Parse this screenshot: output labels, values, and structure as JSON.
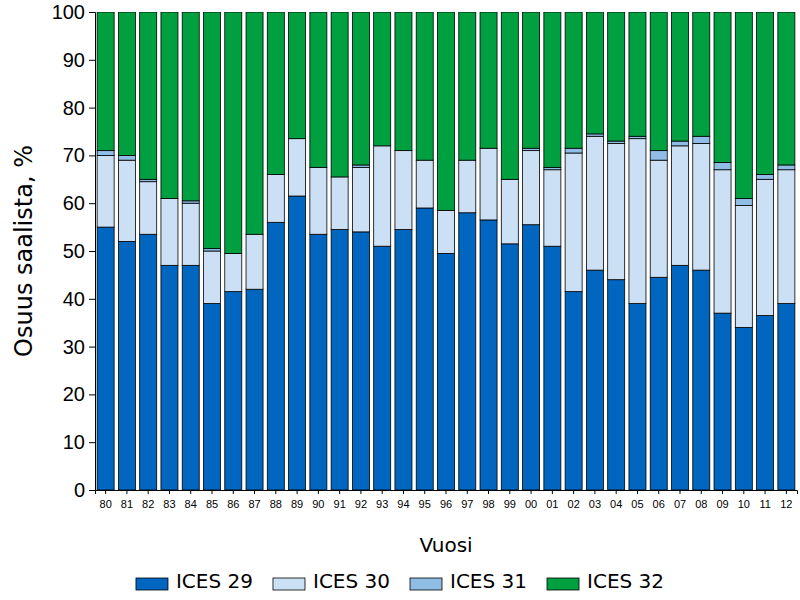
{
  "chart_data": {
    "type": "bar",
    "stacked": true,
    "x_label": "Vuosi",
    "y_label": "Osuus saalista, %",
    "categories": [
      "80",
      "81",
      "82",
      "83",
      "84",
      "85",
      "86",
      "87",
      "88",
      "89",
      "90",
      "91",
      "92",
      "93",
      "94",
      "95",
      "96",
      "97",
      "98",
      "99",
      "00",
      "01",
      "02",
      "03",
      "04",
      "05",
      "06",
      "07",
      "08",
      "09",
      "10",
      "11",
      "12"
    ],
    "ylim": [
      0,
      100
    ],
    "yticks": [
      0,
      10,
      20,
      30,
      40,
      50,
      60,
      70,
      80,
      90,
      100
    ],
    "legend": "bottom",
    "series": [
      {
        "name": "ICES 29",
        "color": "#0066c0",
        "values": [
          55,
          52,
          53.5,
          47,
          47,
          39,
          41.5,
          42,
          56,
          61.5,
          53.5,
          54.5,
          54,
          51,
          54.5,
          59,
          49.5,
          58,
          56.5,
          51.5,
          55.5,
          51,
          41.5,
          46,
          44,
          39,
          44.5,
          47,
          46,
          37,
          34,
          36.5,
          39
        ]
      },
      {
        "name": "ICES 30",
        "color": "#cce0f5",
        "values": [
          15,
          17,
          11,
          14,
          13,
          11,
          8,
          11.5,
          10,
          12,
          14,
          11,
          13.5,
          21,
          16.5,
          10,
          9,
          11,
          15,
          13.5,
          15.5,
          16,
          29,
          28,
          28.5,
          34.5,
          24.5,
          25,
          26.5,
          30,
          25.5,
          28.5,
          28
        ]
      },
      {
        "name": "ICES 31",
        "color": "#8fbde6",
        "values": [
          1,
          1,
          0.5,
          0,
          0.5,
          0.5,
          0,
          0,
          0,
          0,
          0,
          0,
          0.5,
          0,
          0,
          0,
          0,
          0,
          0,
          0,
          0.5,
          0.5,
          1,
          0.5,
          0.5,
          0.5,
          2,
          1,
          1.5,
          1.5,
          1.5,
          1,
          1
        ]
      },
      {
        "name": "ICES 32",
        "color": "#00a040",
        "values": [
          29,
          30,
          35,
          39,
          39.5,
          49.5,
          50.5,
          46.5,
          34,
          26.5,
          32.5,
          34.5,
          32,
          28,
          29,
          31,
          41.5,
          31,
          28.5,
          35,
          28.5,
          32.5,
          28.5,
          25.5,
          27,
          26,
          29,
          27,
          26,
          31.5,
          39,
          34,
          32
        ]
      }
    ]
  }
}
